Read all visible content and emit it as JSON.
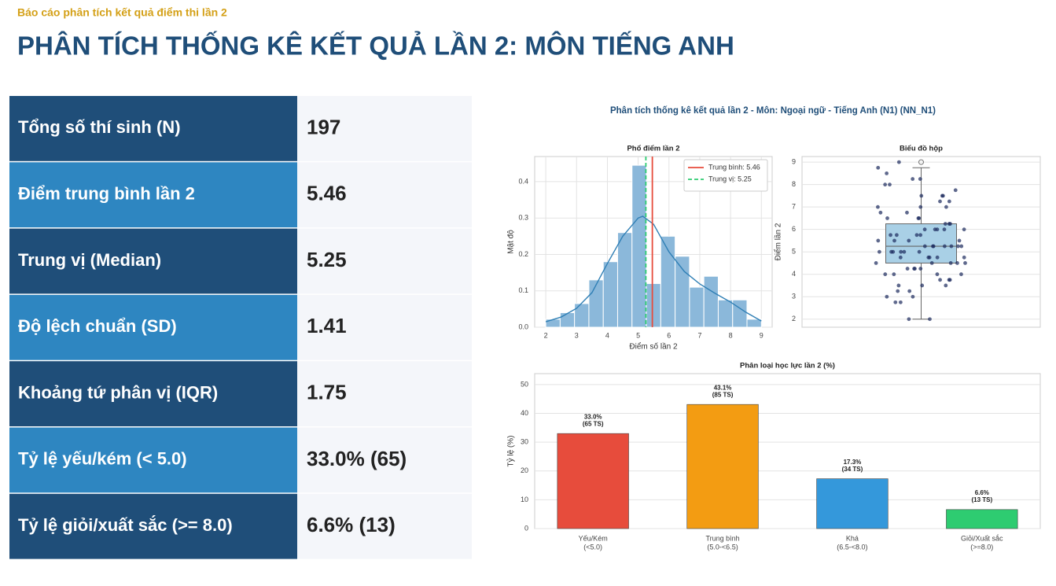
{
  "header": {
    "subtitle": "Báo cáo phân tích kết quả điểm thi lần 2",
    "title": "PHÂN TÍCH THỐNG KÊ KẾT QUẢ LẦN 2: MÔN TIẾNG ANH"
  },
  "table": {
    "rows": [
      [
        "Tổng số thí sinh (N)",
        "197"
      ],
      [
        "Điểm trung bình lần 2",
        "5.46"
      ],
      [
        "Trung vị (Median)",
        "5.25"
      ],
      [
        "Độ lệch chuẩn (SD)",
        "1.41"
      ],
      [
        "Khoảng tứ phân vị (IQR)",
        "1.75"
      ],
      [
        "Tỷ lệ yếu/kém (< 5.0)",
        "33.0% (65)"
      ],
      [
        "Tỷ lệ giỏi/xuất sắc (>= 8.0)",
        "6.6% (13)"
      ]
    ]
  },
  "figure_title": "Phân tích thống kê kết quả lần 2 - Môn: Ngoại ngữ - Tiếng Anh (N1) (NN_N1)",
  "chart_data": [
    {
      "type": "histogram",
      "title": "Phổ điểm lần 2",
      "x_label": "Điểm số lần 2",
      "y_label": "Mật độ",
      "bins": [
        2,
        2.467,
        2.933,
        3.4,
        3.867,
        4.333,
        4.8,
        5.267,
        5.733,
        6.2,
        6.667,
        7.133,
        7.6,
        8.067,
        8.533,
        9
      ],
      "values": [
        0.022,
        0.04,
        0.065,
        0.13,
        0.18,
        0.26,
        0.445,
        0.12,
        0.25,
        0.195,
        0.11,
        0.14,
        0.075,
        0.075,
        0.022
      ],
      "color": "#8bb8da",
      "kde": {
        "color": "#2f7fb5",
        "x": [
          2,
          2.5,
          3,
          3.5,
          4,
          4.5,
          5,
          5.15,
          5.5,
          6,
          6.5,
          7,
          7.5,
          8,
          8.5,
          9
        ],
        "values": [
          0.015,
          0.028,
          0.052,
          0.095,
          0.175,
          0.25,
          0.3,
          0.305,
          0.283,
          0.207,
          0.153,
          0.119,
          0.093,
          0.069,
          0.041,
          0.017
        ]
      },
      "lines": [
        {
          "name": "Trung bình: 5.46",
          "value": 5.46,
          "color": "#e74c3c",
          "dashed": false
        },
        {
          "name": "Trung vị: 5.25",
          "value": 5.25,
          "color": "#2ecc71",
          "dashed": true
        }
      ],
      "legend": "upper right",
      "xlim": [
        1.64,
        9.35
      ],
      "xticks": [
        2,
        3,
        4,
        5,
        6,
        7,
        8,
        9
      ],
      "ylim": [
        0,
        0.469
      ],
      "yticks": [
        {
          "value": 0,
          "label": "0.0"
        },
        0.1,
        0.2,
        0.3,
        0.4
      ],
      "grid": true
    },
    {
      "type": "box",
      "title": "Biểu đồ hộp",
      "y_label": "Điểm lần 2",
      "color": "#a9d0e6",
      "point_color": "#1b2a5c",
      "q1": 4.5,
      "median": 5.25,
      "q3": 6.25,
      "whiskers": [
        2,
        8.75
      ],
      "outliers": [
        9
      ],
      "points": [
        2,
        2,
        2.75,
        2.75,
        3,
        3,
        3.25,
        3.25,
        3.5,
        3.5,
        3.5,
        3.75,
        3.75,
        3.75,
        4,
        4,
        4,
        4,
        4.25,
        4.25,
        4.25,
        4.25,
        4.5,
        4.5,
        4.5,
        4.5,
        4.5,
        4.75,
        4.75,
        4.75,
        4.75,
        4.75,
        5,
        5,
        5,
        5,
        5,
        5,
        5.25,
        5.25,
        5.25,
        5.25,
        5.25,
        5.25,
        5.25,
        5.5,
        5.5,
        5.5,
        5.5,
        5.75,
        5.75,
        5.75,
        5.75,
        6,
        6,
        6,
        6,
        6,
        6.25,
        6.25,
        6.25,
        6.5,
        6.5,
        6.5,
        6.75,
        6.75,
        7,
        7,
        7,
        7.25,
        7.25,
        7.5,
        7.5,
        7.5,
        7.75,
        8,
        8,
        8.25,
        8.25,
        8.5,
        8.75,
        9
      ],
      "ylim": [
        1.64,
        9.25
      ],
      "yticks": [
        2,
        3,
        4,
        5,
        6,
        7,
        8,
        9
      ],
      "grid": true
    },
    {
      "type": "bar",
      "title": "Phân loại học lực lần 2 (%)",
      "y_label": "Tỷ lệ (%)",
      "categories": [
        "Yếu/Kém",
        "Trung bình",
        "Khá",
        "Giỏi/Xuất sắc"
      ],
      "category_notes": [
        "(<5.0)",
        "(5.0-<6.5)",
        "(6.5-<8.0)",
        "(>=8.0)"
      ],
      "values": [
        33.0,
        43.1,
        17.3,
        6.6
      ],
      "value_labels": [
        "33.0%",
        "43.1%",
        "17.3%",
        "6.6%"
      ],
      "count_labels": [
        "(65 TS)",
        "(85 TS)",
        "(34 TS)",
        "(13 TS)"
      ],
      "colors": [
        "#e74c3c",
        "#f39c12",
        "#3498db",
        "#2ecc71"
      ],
      "ylim": [
        0,
        53.8
      ],
      "yticks": [
        0,
        10,
        20,
        30,
        40,
        50
      ],
      "grid": true
    }
  ]
}
